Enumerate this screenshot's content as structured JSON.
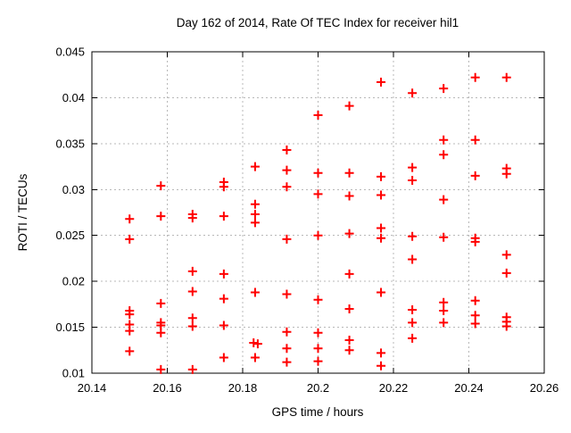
{
  "chart_data": {
    "type": "scatter",
    "title": "Day 162 of 2014, Rate Of TEC Index for receiver hil1",
    "xlabel": "GPS time / hours",
    "ylabel": "ROTI / TECUs",
    "xlim": [
      20.14,
      20.26
    ],
    "ylim": [
      0.01,
      0.045
    ],
    "xticks": [
      20.14,
      20.16,
      20.18,
      20.2,
      20.22,
      20.24,
      20.26
    ],
    "xtick_labels": [
      "20.14",
      "20.16",
      "20.18",
      "20.2",
      "20.22",
      "20.24",
      "20.26"
    ],
    "yticks": [
      0.01,
      0.015,
      0.02,
      0.025,
      0.03,
      0.035,
      0.04,
      0.045
    ],
    "ytick_labels": [
      "0.01",
      "0.015",
      "0.02",
      "0.025",
      "0.03",
      "0.035",
      "0.04",
      "0.045"
    ],
    "grid": true,
    "legend_position": "none",
    "marker_shape": "plus",
    "marker_color": "#ff0000",
    "frame_color": "#000000",
    "grid_color": "#b8b8b8",
    "points": [
      [
        20.15,
        0.0268
      ],
      [
        20.15,
        0.0246
      ],
      [
        20.15,
        0.0168
      ],
      [
        20.15,
        0.0164
      ],
      [
        20.15,
        0.0153
      ],
      [
        20.15,
        0.0146
      ],
      [
        20.15,
        0.0124
      ],
      [
        20.1583,
        0.0304
      ],
      [
        20.1583,
        0.0271
      ],
      [
        20.1583,
        0.0176
      ],
      [
        20.1583,
        0.0155
      ],
      [
        20.1583,
        0.0152
      ],
      [
        20.1583,
        0.0144
      ],
      [
        20.1583,
        0.0104
      ],
      [
        20.1667,
        0.0273
      ],
      [
        20.1667,
        0.0269
      ],
      [
        20.1667,
        0.0211
      ],
      [
        20.1667,
        0.0189
      ],
      [
        20.1667,
        0.016
      ],
      [
        20.1667,
        0.0151
      ],
      [
        20.1667,
        0.0104
      ],
      [
        20.175,
        0.0308
      ],
      [
        20.175,
        0.0303
      ],
      [
        20.175,
        0.0271
      ],
      [
        20.175,
        0.0208
      ],
      [
        20.175,
        0.0181
      ],
      [
        20.175,
        0.0152
      ],
      [
        20.175,
        0.0117
      ],
      [
        20.1833,
        0.0325
      ],
      [
        20.1833,
        0.0284
      ],
      [
        20.1833,
        0.0273
      ],
      [
        20.1833,
        0.0264
      ],
      [
        20.1833,
        0.0188
      ],
      [
        20.1829,
        0.0133
      ],
      [
        20.184,
        0.0132
      ],
      [
        20.1833,
        0.0117
      ],
      [
        20.1917,
        0.0343
      ],
      [
        20.1917,
        0.0321
      ],
      [
        20.1917,
        0.0303
      ],
      [
        20.1917,
        0.0246
      ],
      [
        20.1917,
        0.0186
      ],
      [
        20.1917,
        0.0145
      ],
      [
        20.1917,
        0.0127
      ],
      [
        20.1917,
        0.0112
      ],
      [
        20.2,
        0.0381
      ],
      [
        20.2,
        0.0318
      ],
      [
        20.2,
        0.0295
      ],
      [
        20.2,
        0.025
      ],
      [
        20.2,
        0.018
      ],
      [
        20.2,
        0.0144
      ],
      [
        20.2,
        0.0127
      ],
      [
        20.2,
        0.0113
      ],
      [
        20.2083,
        0.0391
      ],
      [
        20.2083,
        0.0318
      ],
      [
        20.2083,
        0.0293
      ],
      [
        20.2083,
        0.0252
      ],
      [
        20.2083,
        0.0208
      ],
      [
        20.2083,
        0.017
      ],
      [
        20.2083,
        0.0136
      ],
      [
        20.2083,
        0.0125
      ],
      [
        20.2167,
        0.0417
      ],
      [
        20.2167,
        0.0314
      ],
      [
        20.2167,
        0.0294
      ],
      [
        20.2167,
        0.0258
      ],
      [
        20.2167,
        0.0247
      ],
      [
        20.2167,
        0.0188
      ],
      [
        20.2167,
        0.0122
      ],
      [
        20.2167,
        0.0108
      ],
      [
        20.225,
        0.0405
      ],
      [
        20.225,
        0.0324
      ],
      [
        20.225,
        0.031
      ],
      [
        20.225,
        0.0249
      ],
      [
        20.225,
        0.0224
      ],
      [
        20.225,
        0.0169
      ],
      [
        20.225,
        0.0155
      ],
      [
        20.225,
        0.0138
      ],
      [
        20.2333,
        0.041
      ],
      [
        20.2333,
        0.0354
      ],
      [
        20.2333,
        0.0338
      ],
      [
        20.2333,
        0.0289
      ],
      [
        20.2333,
        0.0248
      ],
      [
        20.2333,
        0.0177
      ],
      [
        20.2333,
        0.0168
      ],
      [
        20.2333,
        0.0155
      ],
      [
        20.2417,
        0.0422
      ],
      [
        20.2417,
        0.0354
      ],
      [
        20.2417,
        0.0315
      ],
      [
        20.2417,
        0.0247
      ],
      [
        20.2417,
        0.0243
      ],
      [
        20.2417,
        0.0179
      ],
      [
        20.2417,
        0.0163
      ],
      [
        20.2417,
        0.0154
      ],
      [
        20.25,
        0.0422
      ],
      [
        20.25,
        0.0323
      ],
      [
        20.25,
        0.0317
      ],
      [
        20.25,
        0.0229
      ],
      [
        20.25,
        0.0209
      ],
      [
        20.25,
        0.0161
      ],
      [
        20.25,
        0.0156
      ],
      [
        20.25,
        0.0151
      ]
    ]
  }
}
